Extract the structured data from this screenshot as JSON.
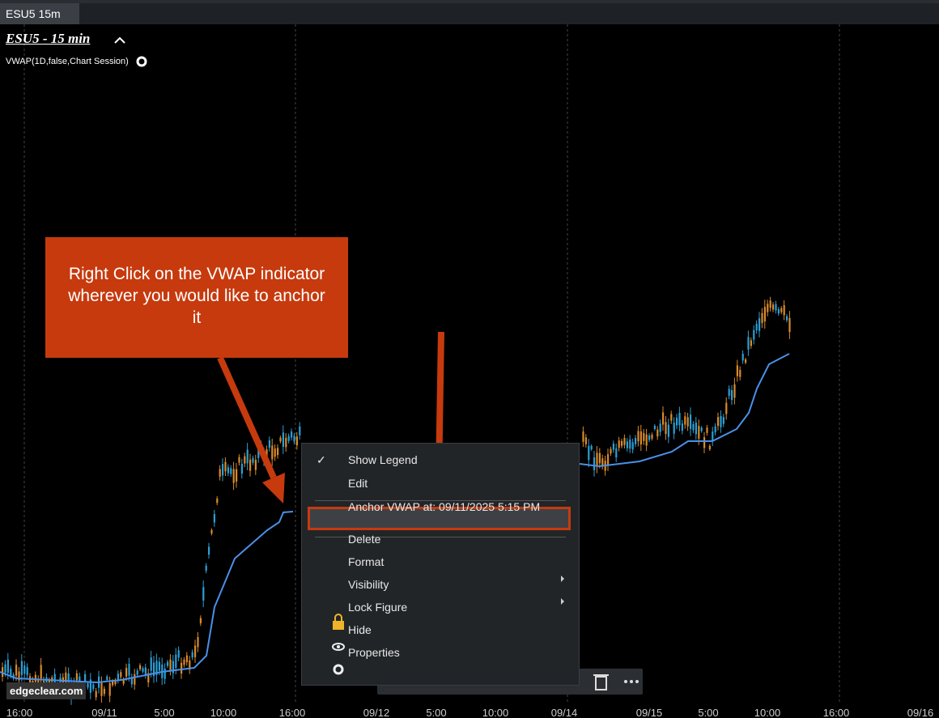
{
  "tab": {
    "label": "ESU5 15m"
  },
  "chart": {
    "title": "ESU5 - 15 min",
    "indicator": "VWAP(1D,false,Chart Session)",
    "x_labels": [
      "16:00",
      "09/11",
      "5:00",
      "10:00",
      "16:00",
      "09/12",
      "5:00",
      "10:00",
      "09/14",
      "09/15",
      "5:00",
      "10:00",
      "16:00",
      "09/16"
    ],
    "watermark": "edgeclear.com"
  },
  "callout": {
    "text": "Right Click on the VWAP indicator wherever you would like to anchor it"
  },
  "menu": {
    "items": [
      "Show Legend",
      "Edit",
      "Anchor VWAP at: 09/11/2025 5:15 PM",
      "Delete",
      "Format",
      "Visibility",
      "Lock Figure",
      "Hide",
      "Properties"
    ],
    "check": "✓"
  }
}
